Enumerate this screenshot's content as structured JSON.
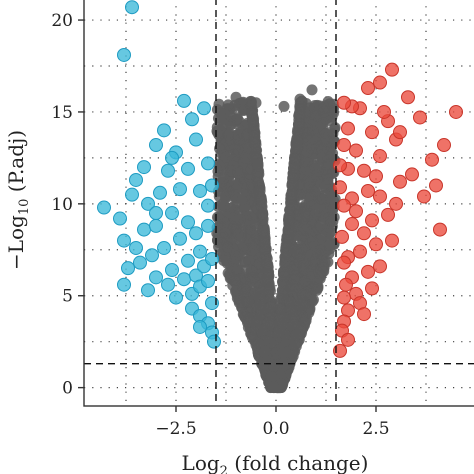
{
  "chart_data": {
    "type": "scatter",
    "xlabel": {
      "base": "Log",
      "sub": "2",
      "rest": " (fold change)"
    },
    "ylabel": {
      "base": "−Log",
      "sub": "10",
      "rest": " (P.adj)"
    },
    "xlim": [
      -4.8,
      5.0
    ],
    "ylim": [
      -1.0,
      21.2
    ],
    "x_ticks": [
      -2.5,
      0.0,
      2.5
    ],
    "x_tick_labels": [
      "−2.5",
      "0.0",
      "2.5"
    ],
    "y_ticks": [
      0,
      5,
      10,
      15,
      20
    ],
    "y_tick_labels": [
      "0",
      "5",
      "10",
      "15",
      "20"
    ],
    "grid": true,
    "thresholds": {
      "log2fc": [
        -1.5,
        1.5
      ],
      "neg_log10_padj": 1.3
    },
    "colors": {
      "down": "#3bb8d8",
      "up": "#ea4a3c",
      "ns": "#5c5c5c"
    },
    "series": [
      {
        "group": "down",
        "points": [
          [
            -3.6,
            20.7
          ],
          [
            -3.8,
            18.1
          ],
          [
            -2.3,
            15.6
          ],
          [
            -1.8,
            15.2
          ],
          [
            -2.8,
            14.0
          ],
          [
            -3.0,
            13.2
          ],
          [
            -2.1,
            14.6
          ],
          [
            -2.5,
            12.8
          ],
          [
            -2.0,
            13.5
          ],
          [
            -3.3,
            12.0
          ],
          [
            -3.5,
            11.3
          ],
          [
            -2.7,
            11.8
          ],
          [
            -4.3,
            9.8
          ],
          [
            -3.9,
            9.2
          ],
          [
            -3.6,
            10.5
          ],
          [
            -3.2,
            10.0
          ],
          [
            -2.9,
            10.6
          ],
          [
            -2.4,
            10.8
          ],
          [
            -3.8,
            8.0
          ],
          [
            -3.5,
            7.6
          ],
          [
            -3.3,
            8.6
          ],
          [
            -3.0,
            8.8
          ],
          [
            -2.6,
            9.5
          ],
          [
            -2.2,
            9.0
          ],
          [
            -3.7,
            6.5
          ],
          [
            -3.4,
            6.8
          ],
          [
            -3.1,
            7.2
          ],
          [
            -2.8,
            7.6
          ],
          [
            -2.4,
            8.1
          ],
          [
            -2.0,
            8.4
          ],
          [
            -3.8,
            5.6
          ],
          [
            -3.0,
            6.0
          ],
          [
            -2.6,
            6.4
          ],
          [
            -2.2,
            6.9
          ],
          [
            -1.9,
            7.4
          ],
          [
            -1.7,
            8.8
          ],
          [
            -3.2,
            5.3
          ],
          [
            -2.7,
            5.6
          ],
          [
            -2.3,
            5.9
          ],
          [
            -2.0,
            6.1
          ],
          [
            -1.8,
            6.6
          ],
          [
            -1.6,
            7.0
          ],
          [
            -2.5,
            4.9
          ],
          [
            -2.1,
            5.1
          ],
          [
            -1.9,
            5.5
          ],
          [
            -1.7,
            5.8
          ],
          [
            -1.6,
            4.6
          ],
          [
            -2.1,
            4.3
          ],
          [
            -1.9,
            3.9
          ],
          [
            -1.7,
            3.5
          ],
          [
            -1.6,
            3.0
          ],
          [
            -1.55,
            2.5
          ],
          [
            -1.9,
            3.3
          ],
          [
            -1.7,
            12.2
          ],
          [
            -1.6,
            11.0
          ],
          [
            -2.6,
            12.5
          ],
          [
            -2.2,
            11.9
          ],
          [
            -1.9,
            10.7
          ],
          [
            -1.7,
            9.9
          ],
          [
            -3.0,
            9.5
          ]
        ]
      },
      {
        "group": "up",
        "points": [
          [
            2.9,
            17.3
          ],
          [
            2.6,
            16.6
          ],
          [
            2.3,
            16.3
          ],
          [
            3.3,
            15.8
          ],
          [
            2.1,
            15.2
          ],
          [
            1.9,
            15.3
          ],
          [
            4.5,
            15.0
          ],
          [
            3.6,
            14.7
          ],
          [
            2.8,
            14.5
          ],
          [
            1.7,
            15.5
          ],
          [
            4.2,
            13.2
          ],
          [
            3.0,
            13.5
          ],
          [
            2.4,
            13.9
          ],
          [
            1.8,
            14.1
          ],
          [
            3.9,
            12.4
          ],
          [
            2.6,
            12.6
          ],
          [
            2.0,
            12.9
          ],
          [
            1.7,
            13.2
          ],
          [
            3.4,
            11.6
          ],
          [
            3.1,
            11.2
          ],
          [
            2.5,
            11.5
          ],
          [
            2.2,
            11.8
          ],
          [
            1.8,
            11.9
          ],
          [
            4.0,
            11.0
          ],
          [
            3.7,
            10.4
          ],
          [
            3.0,
            10.0
          ],
          [
            2.6,
            10.4
          ],
          [
            2.3,
            10.7
          ],
          [
            1.9,
            10.3
          ],
          [
            1.6,
            10.9
          ],
          [
            2.8,
            9.4
          ],
          [
            2.4,
            9.1
          ],
          [
            2.0,
            9.6
          ],
          [
            1.7,
            9.9
          ],
          [
            4.1,
            8.6
          ],
          [
            2.2,
            8.4
          ],
          [
            1.9,
            8.9
          ],
          [
            1.65,
            8.2
          ],
          [
            2.5,
            7.8
          ],
          [
            2.1,
            7.4
          ],
          [
            1.8,
            7.1
          ],
          [
            2.6,
            6.6
          ],
          [
            2.3,
            6.3
          ],
          [
            1.9,
            6.0
          ],
          [
            1.7,
            6.8
          ],
          [
            2.4,
            5.4
          ],
          [
            2.0,
            5.1
          ],
          [
            1.75,
            5.6
          ],
          [
            2.1,
            4.6
          ],
          [
            1.8,
            4.2
          ],
          [
            1.7,
            3.6
          ],
          [
            1.65,
            3.1
          ],
          [
            1.8,
            2.6
          ],
          [
            1.6,
            2.0
          ],
          [
            3.1,
            13.9
          ],
          [
            2.7,
            15.0
          ],
          [
            1.6,
            12.1
          ],
          [
            2.9,
            8.0
          ],
          [
            2.2,
            4.0
          ],
          [
            1.7,
            4.9
          ]
        ]
      }
    ]
  }
}
